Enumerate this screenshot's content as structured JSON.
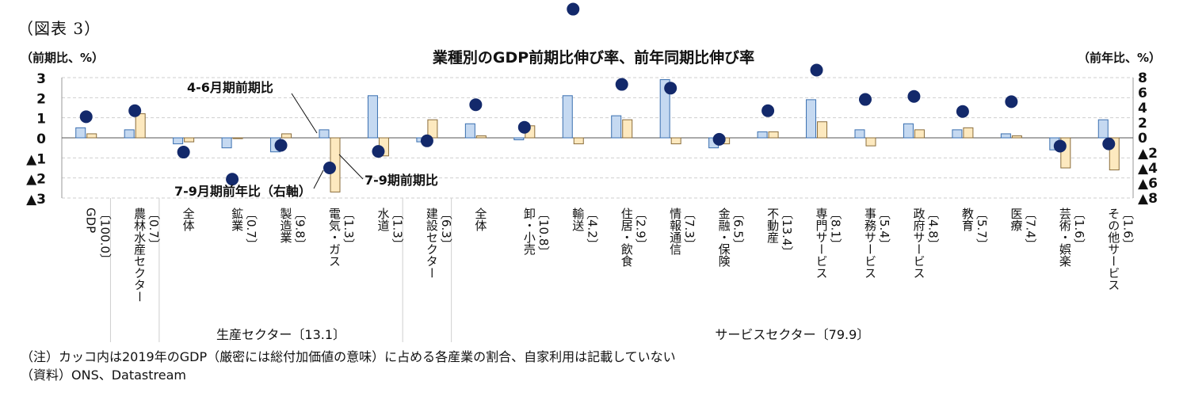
{
  "figure_label": "（図表 3）",
  "chart_data": {
    "type": "bar",
    "title": "業種別のGDP前期比伸び率、前年同期比伸び率",
    "y_left_unit": "（前期比、%）",
    "y_right_unit": "（前年比、%）",
    "ylim_left": [
      -3,
      3
    ],
    "ylim_right": [
      -8,
      8
    ],
    "y_left_ticks": [
      "3",
      "2",
      "1",
      "0",
      "▲1",
      "▲2",
      "▲3"
    ],
    "y_right_ticks": [
      "8",
      "6",
      "4",
      "2",
      "0",
      "▲2",
      "▲4",
      "▲6",
      "▲8"
    ],
    "categories": [
      {
        "name": "GDP",
        "weight": "〔100.0〕"
      },
      {
        "name": "農林水産セクター",
        "weight": "〔0.7〕"
      },
      {
        "name": "全体",
        "weight": ""
      },
      {
        "name": "鉱業",
        "weight": "〔0.7〕"
      },
      {
        "name": "製造業",
        "weight": "〔9.8〕"
      },
      {
        "name": "電気・ガス",
        "weight": "〔1.3〕"
      },
      {
        "name": "水道",
        "weight": "〔1.3〕"
      },
      {
        "name": "建設セクター",
        "weight": "〔6.3〕"
      },
      {
        "name": "全体",
        "weight": ""
      },
      {
        "name": "卸・小売",
        "weight": "〔10.8〕"
      },
      {
        "name": "輸送",
        "weight": "〔4.2〕"
      },
      {
        "name": "住居・飲食",
        "weight": "〔2.9〕"
      },
      {
        "name": "情報通信",
        "weight": "〔7.3〕"
      },
      {
        "name": "金融・保険",
        "weight": "〔6.5〕"
      },
      {
        "name": "不動産",
        "weight": "〔13.4〕"
      },
      {
        "name": "専門サービス",
        "weight": "〔8.1〕"
      },
      {
        "name": "事務サービス",
        "weight": "〔5.4〕"
      },
      {
        "name": "政府サービス",
        "weight": "〔4.8〕"
      },
      {
        "name": "教育",
        "weight": "〔5.7〕"
      },
      {
        "name": "医療",
        "weight": "〔7.4〕"
      },
      {
        "name": "芸術・娯楽",
        "weight": "〔1.6〕"
      },
      {
        "name": "その他サービス",
        "weight": "〔1.6〕"
      }
    ],
    "series": [
      {
        "name": "4-6月期前期比",
        "axis": "left",
        "kind": "bar",
        "color": "#c5d9f1",
        "stroke": "#3a6fb0",
        "values": [
          0.5,
          0.4,
          -0.3,
          -0.5,
          -0.7,
          0.4,
          2.1,
          -0.2,
          0.7,
          -0.1,
          2.1,
          1.1,
          2.9,
          -0.5,
          0.3,
          1.9,
          0.4,
          0.7,
          0.4,
          0.2,
          -0.6,
          0.9
        ]
      },
      {
        "name": "7-9期前期比",
        "axis": "left",
        "kind": "bar",
        "color": "#fde9bf",
        "stroke": "#8a6d3b",
        "values": [
          0.2,
          1.2,
          -0.2,
          0.0,
          0.2,
          -2.7,
          -0.9,
          0.9,
          0.1,
          0.6,
          -0.3,
          0.9,
          -0.3,
          -0.3,
          0.3,
          0.8,
          -0.4,
          0.4,
          0.5,
          0.1,
          -1.5,
          -1.6
        ]
      },
      {
        "name": "7-9月期前年比（右軸）",
        "axis": "right",
        "kind": "dot",
        "color": "#13296b",
        "values": [
          2.8,
          3.6,
          -1.9,
          -5.5,
          -1.0,
          -4.0,
          -1.8,
          -0.4,
          4.4,
          1.4,
          17.1,
          7.1,
          6.6,
          -0.2,
          3.6,
          9.0,
          5.1,
          5.5,
          3.5,
          4.8,
          -1.1,
          -0.8
        ]
      }
    ],
    "annotations": {
      "s1": "4-6月期前期比",
      "s2": "7-9期前期比",
      "s3": "7-9月期前年比（右軸）"
    },
    "groups": [
      {
        "label": "生産セクター〔13.1〕",
        "from": 2,
        "to": 6
      },
      {
        "label": "サービスセクター〔79.9〕",
        "from": 8,
        "to": 21
      }
    ],
    "grid": true,
    "legend": "annotations"
  },
  "notes": {
    "note1": "（注）カッコ内は2019年のGDP（厳密には総付加価値の意味）に占める各産業の割合、自家利用は記載していない",
    "note2": "（資料）ONS、Datastream"
  }
}
